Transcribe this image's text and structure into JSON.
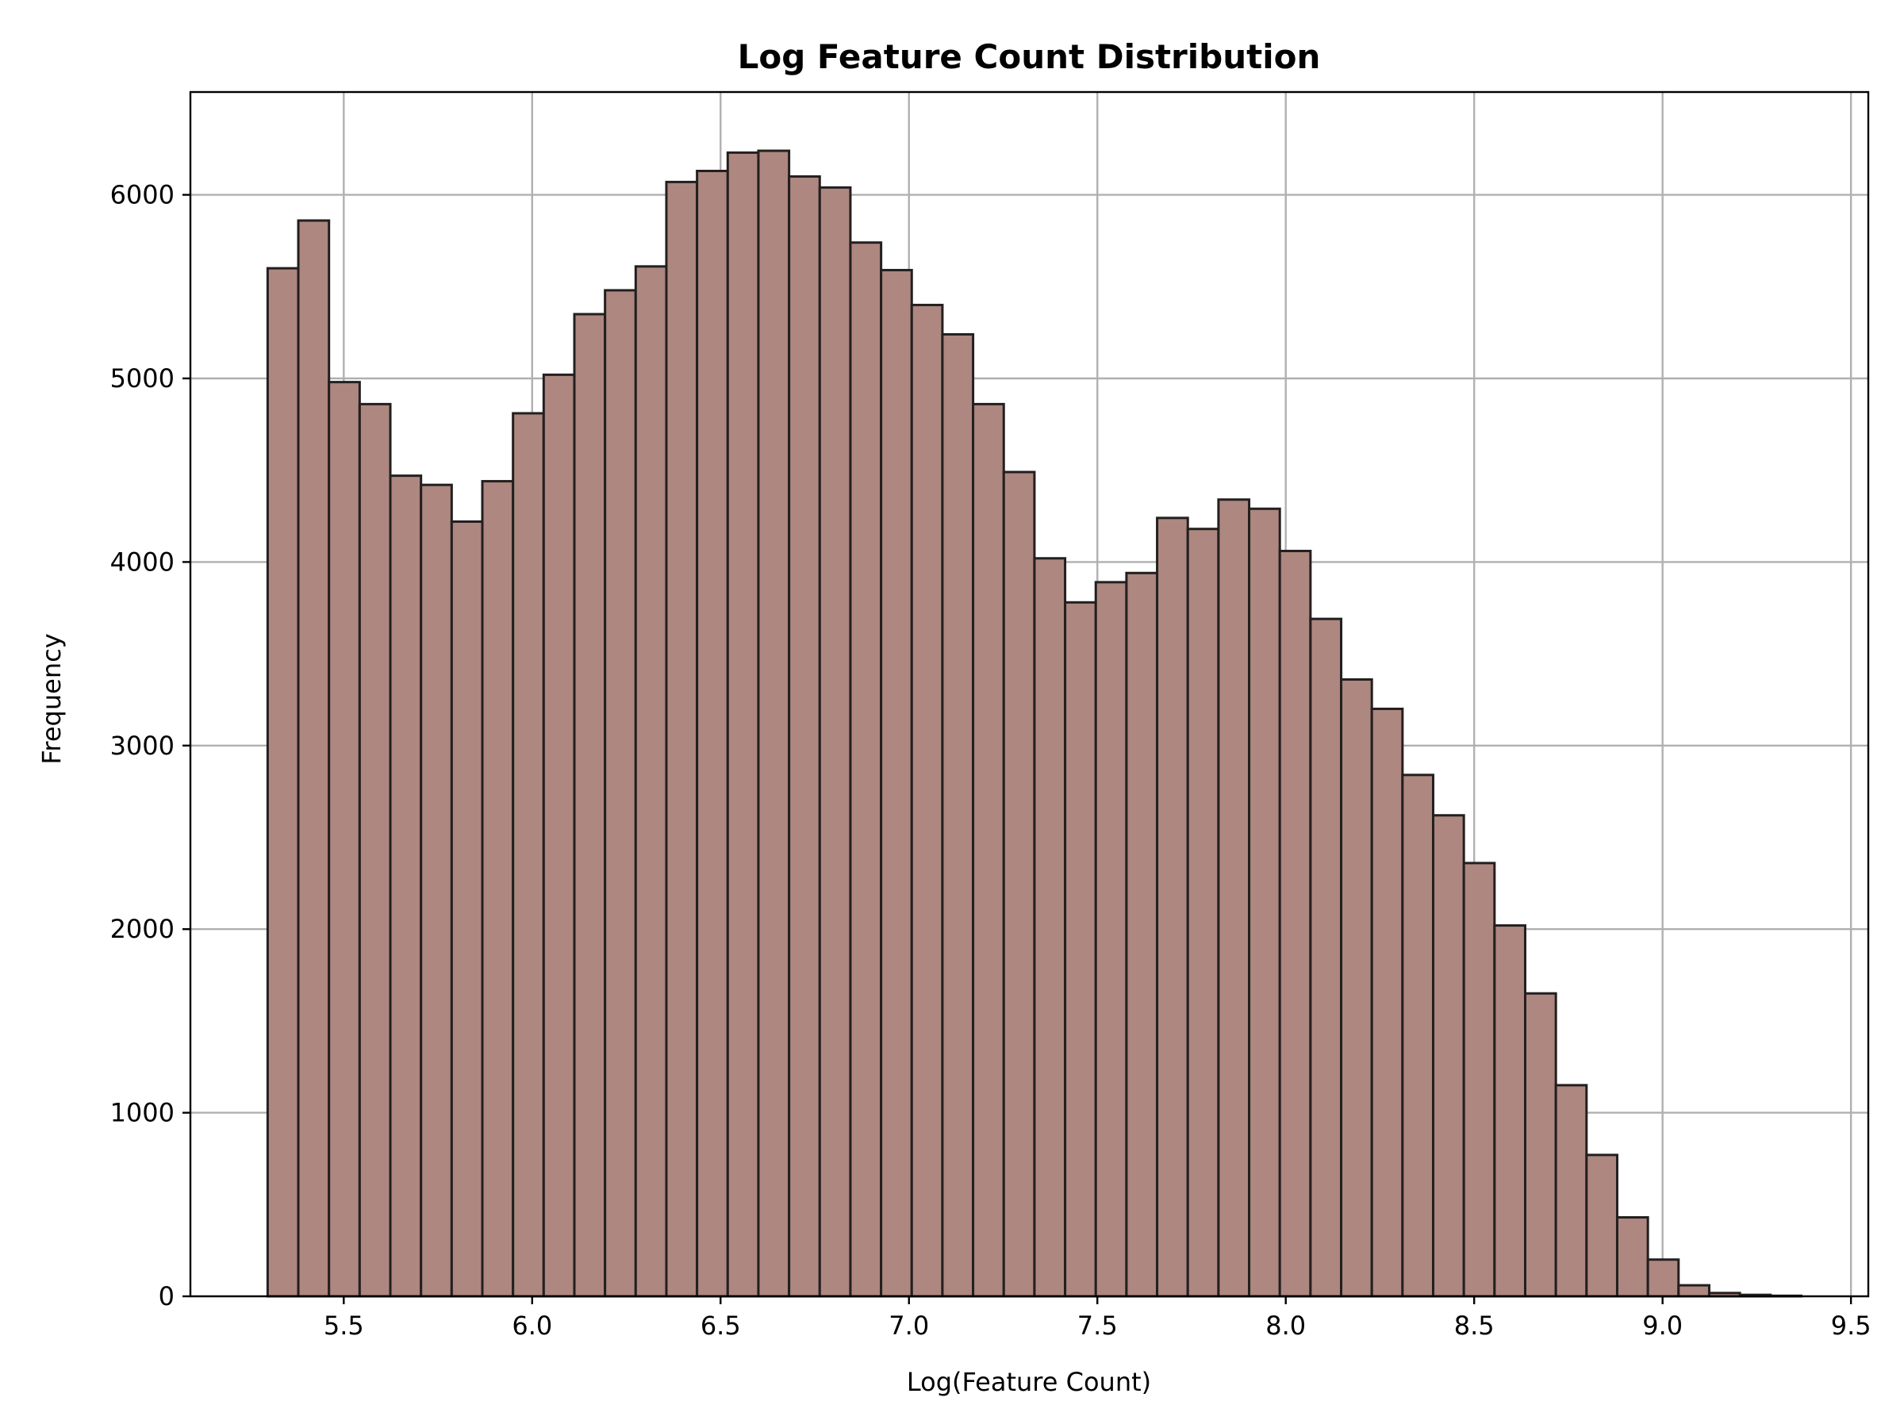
{
  "chart_data": {
    "type": "bar",
    "title": "Log Feature Count Distribution",
    "xlabel": "Log(Feature Count)",
    "ylabel": "Frequency",
    "bin_start": 5.298,
    "bin_width": 0.0814,
    "values": [
      5600,
      5860,
      4980,
      4860,
      4470,
      4420,
      4220,
      4440,
      4810,
      5020,
      5350,
      5480,
      5610,
      6070,
      6130,
      6230,
      6240,
      6100,
      6040,
      5740,
      5590,
      5400,
      5240,
      4860,
      4490,
      4020,
      3780,
      3890,
      3940,
      4240,
      4180,
      4340,
      4290,
      4060,
      3690,
      3360,
      3200,
      2840,
      2620,
      2360,
      2020,
      1650,
      1150,
      770,
      430,
      200,
      60,
      18,
      8,
      3
    ],
    "xticks": [
      5.5,
      6.0,
      6.5,
      7.0,
      7.5,
      8.0,
      8.5,
      9.0,
      9.5
    ],
    "xtick_labels": [
      "5.5",
      "6.0",
      "6.5",
      "7.0",
      "7.5",
      "8.0",
      "8.5",
      "9.0",
      "9.5"
    ],
    "yticks": [
      0,
      1000,
      2000,
      3000,
      4000,
      5000,
      6000
    ],
    "ytick_labels": [
      "0",
      "1000",
      "2000",
      "3000",
      "4000",
      "5000",
      "6000"
    ],
    "xlim": [
      5.093,
      9.546
    ],
    "ylim": [
      0,
      6560
    ],
    "grid": true,
    "bar_color": "#ad8780",
    "edge_color": "#231f1f"
  }
}
